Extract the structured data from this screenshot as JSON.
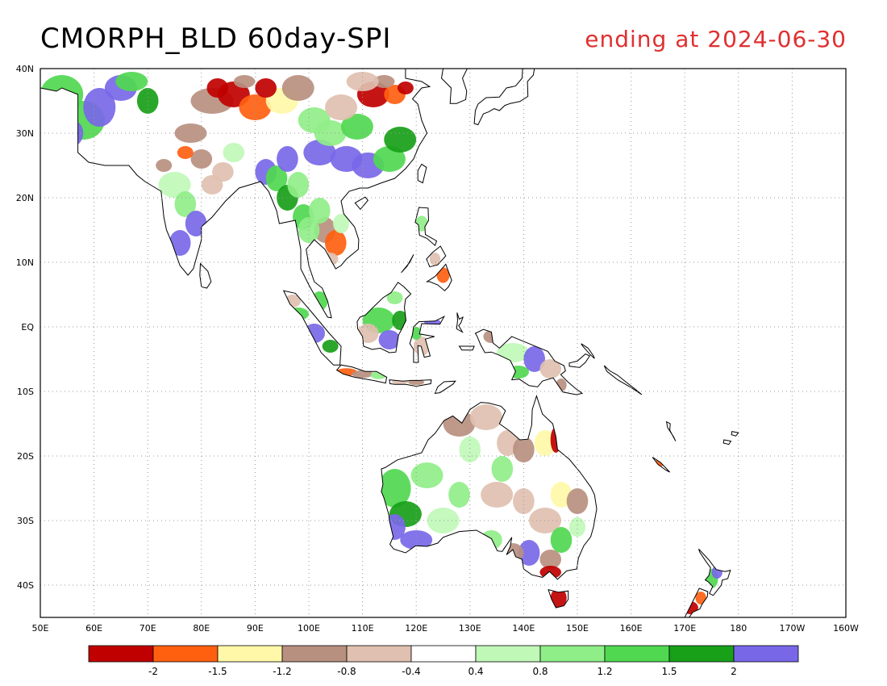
{
  "title": "CMORPH_BLD 60day-SPI",
  "subtitle": "ending at 2024-06-30",
  "colors": {
    "title_right": "#e03030",
    "coast": "#000000",
    "grid": "#9a9a9a",
    "frame": "#000000"
  },
  "map": {
    "lon_range": [
      50,
      200
    ],
    "lat_range": [
      -45,
      40
    ],
    "lat_labels": [
      "40N",
      "30N",
      "20N",
      "10N",
      "EQ",
      "10S",
      "20S",
      "30S",
      "40S"
    ],
    "lat_values": [
      40,
      30,
      20,
      10,
      0,
      -10,
      -20,
      -30,
      -40
    ],
    "lon_labels": [
      "50E",
      "60E",
      "70E",
      "80E",
      "90E",
      "100E",
      "110E",
      "120E",
      "130E",
      "140E",
      "150E",
      "160E",
      "170E",
      "180",
      "170W",
      "160W"
    ],
    "lon_values": [
      50,
      60,
      70,
      80,
      90,
      100,
      110,
      120,
      130,
      140,
      150,
      160,
      170,
      180,
      190,
      200
    ]
  },
  "colorbar": {
    "colors": [
      "#c00000",
      "#ff6010",
      "#fff8a8",
      "#b89080",
      "#e0c0b0",
      "#ffffff",
      "#c0f8b8",
      "#90ee88",
      "#50d850",
      "#18a018",
      "#7868e8"
    ],
    "tick_labels": [
      "-2",
      "-1.5",
      "-1.2",
      "-0.8",
      "-0.4",
      "0.4",
      "0.8",
      "1.2",
      "1.5",
      "2"
    ]
  }
}
